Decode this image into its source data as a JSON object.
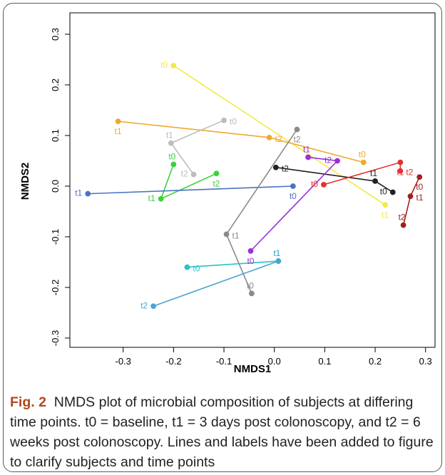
{
  "figure": {
    "label": "Fig. 2",
    "caption": "NMDS plot of microbial composition of subjects at differing time points. t0 = baseline, t1 = 3 days post colonoscopy, and t2 = 6 weeks post colonoscopy. Lines and labels have been added to figure to clarify subjects and time points"
  },
  "chart_data": {
    "type": "scatter",
    "title": "",
    "xlabel": "NMDS1",
    "ylabel": "NMDS2",
    "xlim": [
      -0.38,
      0.31
    ],
    "ylim": [
      -0.32,
      0.32
    ],
    "xticks": [
      -0.3,
      -0.2,
      -0.1,
      0.0,
      0.1,
      0.2,
      0.3
    ],
    "xtick_labels": [
      "-0.3",
      "-0.2",
      "-0.1",
      "0.0",
      "0.1",
      "0.2",
      "0.3"
    ],
    "yticks": [
      -0.3,
      -0.2,
      -0.1,
      0.0,
      0.1,
      0.2,
      0.3
    ],
    "ytick_labels": [
      "-0.3",
      "-0.2",
      "-0.1",
      "0.0",
      "0.1",
      "0.2",
      "0.3"
    ],
    "grid": false,
    "legend": "none",
    "series": [
      {
        "color": "#f2ea45",
        "points": [
          {
            "label": "t0",
            "x": -0.2,
            "y": 0.238
          },
          {
            "label": "t1",
            "x": 0.22,
            "y": -0.037
          }
        ]
      },
      {
        "color": "#eeaa2b",
        "points": [
          {
            "label": "t1",
            "x": -0.31,
            "y": 0.128
          },
          {
            "label": "t2",
            "x": -0.01,
            "y": 0.096
          },
          {
            "label": "t0",
            "x": 0.177,
            "y": 0.047
          }
        ]
      },
      {
        "color": "#bdbdbd",
        "points": [
          {
            "label": "t0",
            "x": -0.1,
            "y": 0.13
          },
          {
            "label": "t1",
            "x": -0.205,
            "y": 0.085
          },
          {
            "label": "t2",
            "x": -0.16,
            "y": 0.023
          }
        ]
      },
      {
        "color": "#3dd13d",
        "points": [
          {
            "label": "t0",
            "x": -0.2,
            "y": 0.043
          },
          {
            "label": "t1",
            "x": -0.225,
            "y": -0.025
          },
          {
            "label": "t2",
            "x": -0.115,
            "y": 0.025
          }
        ]
      },
      {
        "color": "#4a73c2",
        "points": [
          {
            "label": "t1",
            "x": -0.37,
            "y": -0.015
          },
          {
            "label": "t0",
            "x": 0.037,
            "y": 0.0
          }
        ]
      },
      {
        "color": "#8a8a8a",
        "points": [
          {
            "label": "t2",
            "x": 0.045,
            "y": 0.112
          },
          {
            "label": "t1",
            "x": -0.095,
            "y": -0.095
          },
          {
            "label": "t0",
            "x": -0.045,
            "y": -0.212
          }
        ]
      },
      {
        "color": "#222222",
        "points": [
          {
            "label": "t2",
            "x": 0.003,
            "y": 0.037
          },
          {
            "label": "t1",
            "x": 0.2,
            "y": 0.01
          },
          {
            "label": "t0",
            "x": 0.235,
            "y": -0.012
          }
        ]
      },
      {
        "color": "#9b30d9",
        "points": [
          {
            "label": "t1",
            "x": 0.067,
            "y": 0.057
          },
          {
            "label": "t2",
            "x": 0.125,
            "y": 0.05
          },
          {
            "label": "t0",
            "x": -0.047,
            "y": -0.128
          }
        ]
      },
      {
        "color": "#e53030",
        "points": [
          {
            "label": "t0",
            "x": 0.098,
            "y": 0.003
          },
          {
            "label": "t1",
            "x": 0.25,
            "y": 0.047
          },
          {
            "label": "t2",
            "x": 0.25,
            "y": 0.03
          }
        ]
      },
      {
        "color": "#a32020",
        "points": [
          {
            "label": "t0",
            "x": 0.288,
            "y": 0.018
          },
          {
            "label": "t1",
            "x": 0.27,
            "y": -0.02
          },
          {
            "label": "t2",
            "x": 0.256,
            "y": -0.077
          }
        ]
      },
      {
        "color": "#27c3c8",
        "points": [
          {
            "label": "t0",
            "x": -0.173,
            "y": -0.16
          },
          {
            "label": "t1",
            "x": 0.008,
            "y": -0.148
          }
        ]
      },
      {
        "color": "#4aa5d4",
        "points": [
          {
            "label": "t1",
            "x": 0.008,
            "y": -0.148
          },
          {
            "label": "t2",
            "x": -0.24,
            "y": -0.237
          }
        ]
      }
    ]
  }
}
